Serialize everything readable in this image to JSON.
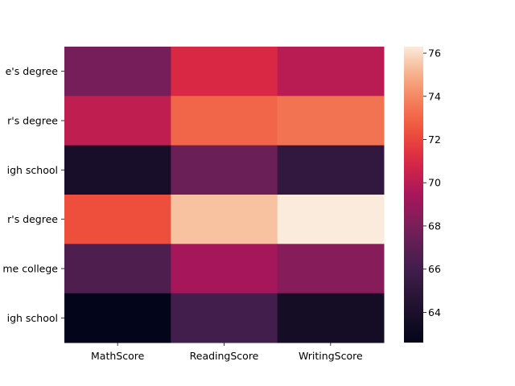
{
  "chart_data": {
    "type": "heatmap",
    "title": "",
    "xlabel": "",
    "ylabel": "",
    "x": [
      "MathScore",
      "ReadingScore",
      "WritingScore"
    ],
    "y": [
      "associate's degree",
      "bachelor's degree",
      "high school",
      "master's degree",
      "some college",
      "some high school"
    ],
    "y_visible": [
      "e's degree",
      "r's degree",
      "igh school",
      "r's degree",
      "me college",
      "igh school"
    ],
    "values": [
      [
        67.9,
        71.0,
        70.0
      ],
      [
        70.2,
        73.0,
        73.4
      ],
      [
        63.8,
        67.5,
        65.2
      ],
      [
        72.3,
        75.4,
        76.3
      ],
      [
        66.5,
        69.4,
        68.4
      ],
      [
        62.6,
        66.0,
        63.6
      ]
    ],
    "vmin": 62.6,
    "vmax": 76.3,
    "colorbar": {
      "ticks": [
        "64",
        "66",
        "68",
        "70",
        "72",
        "74",
        "76"
      ],
      "tick_values": [
        64,
        66,
        68,
        70,
        72,
        74,
        76
      ]
    },
    "colormap": "rocket"
  }
}
